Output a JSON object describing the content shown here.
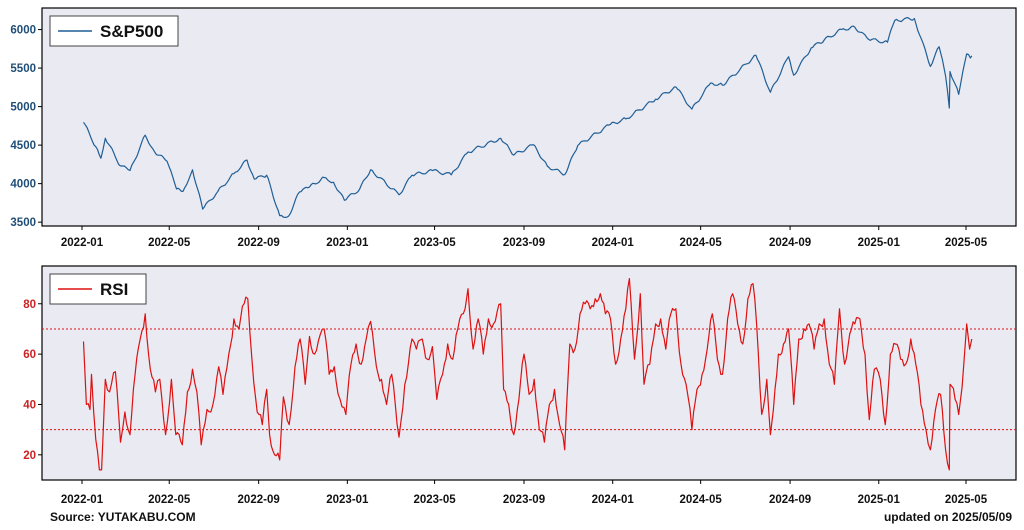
{
  "chart_data": [
    {
      "type": "line",
      "series": [
        {
          "name": "S&P500",
          "color": "#1f5f96",
          "points": [
            [
              "2022-01-03",
              4796
            ],
            [
              "2022-01-20",
              4480
            ],
            [
              "2022-01-27",
              4330
            ],
            [
              "2022-02-02",
              4590
            ],
            [
              "2022-02-23",
              4230
            ],
            [
              "2022-03-08",
              4170
            ],
            [
              "2022-03-29",
              4630
            ],
            [
              "2022-04-11",
              4410
            ],
            [
              "2022-04-28",
              4290
            ],
            [
              "2022-05-11",
              3930
            ],
            [
              "2022-05-20",
              3900
            ],
            [
              "2022-06-02",
              4180
            ],
            [
              "2022-06-16",
              3670
            ],
            [
              "2022-07-07",
              3900
            ],
            [
              "2022-07-29",
              4130
            ],
            [
              "2022-08-16",
              4305
            ],
            [
              "2022-08-26",
              4057
            ],
            [
              "2022-09-12",
              4110
            ],
            [
              "2022-09-30",
              3585
            ],
            [
              "2022-10-12",
              3577
            ],
            [
              "2022-10-27",
              3890
            ],
            [
              "2022-11-10",
              3956
            ],
            [
              "2022-11-30",
              4080
            ],
            [
              "2022-12-13",
              4019
            ],
            [
              "2022-12-28",
              3783
            ],
            [
              "2023-01-18",
              3930
            ],
            [
              "2023-02-02",
              4180
            ],
            [
              "2023-03-13",
              3855
            ],
            [
              "2023-03-31",
              4109
            ],
            [
              "2023-04-28",
              4169
            ],
            [
              "2023-05-24",
              4115
            ],
            [
              "2023-06-16",
              4410
            ],
            [
              "2023-07-31",
              4589
            ],
            [
              "2023-08-18",
              4370
            ],
            [
              "2023-09-14",
              4505
            ],
            [
              "2023-10-03",
              4229
            ],
            [
              "2023-10-27",
              4117
            ],
            [
              "2023-11-14",
              4495
            ],
            [
              "2023-12-29",
              4770
            ],
            [
              "2024-01-19",
              4840
            ],
            [
              "2024-02-29",
              5096
            ],
            [
              "2024-03-28",
              5254
            ],
            [
              "2024-04-19",
              4967
            ],
            [
              "2024-05-15",
              5308
            ],
            [
              "2024-05-31",
              5278
            ],
            [
              "2024-07-16",
              5667
            ],
            [
              "2024-08-05",
              5186
            ],
            [
              "2024-08-30",
              5648
            ],
            [
              "2024-09-06",
              5408
            ],
            [
              "2024-09-30",
              5762
            ],
            [
              "2024-10-18",
              5864
            ],
            [
              "2024-11-11",
              6001
            ],
            [
              "2024-11-29",
              6032
            ],
            [
              "2024-12-18",
              5872
            ],
            [
              "2025-01-13",
              5836
            ],
            [
              "2025-01-23",
              6119
            ],
            [
              "2025-02-19",
              6144
            ],
            [
              "2025-03-13",
              5521
            ],
            [
              "2025-03-25",
              5777
            ],
            [
              "2025-04-03",
              5396
            ],
            [
              "2025-04-08",
              4982
            ],
            [
              "2025-04-09",
              5456
            ],
            [
              "2025-04-21",
              5158
            ],
            [
              "2025-05-02",
              5686
            ],
            [
              "2025-05-07",
              5631
            ],
            [
              "2025-05-09",
              5660
            ]
          ]
        }
      ],
      "yticks": [
        3500,
        4000,
        4500,
        5000,
        5500,
        6000
      ],
      "ylim": [
        3450,
        6280
      ],
      "legend": "upper-left"
    },
    {
      "type": "line",
      "series": [
        {
          "name": "RSI",
          "color": "#dd1111",
          "points": [
            [
              "2022-01-03",
              65
            ],
            [
              "2022-01-07",
              40
            ],
            [
              "2022-01-12",
              38
            ],
            [
              "2022-01-14",
              52
            ],
            [
              "2022-01-20",
              26
            ],
            [
              "2022-01-25",
              14
            ],
            [
              "2022-01-28",
              14
            ],
            [
              "2022-02-02",
              50
            ],
            [
              "2022-02-08",
              45
            ],
            [
              "2022-02-16",
              53
            ],
            [
              "2022-02-23",
              25
            ],
            [
              "2022-03-01",
              37
            ],
            [
              "2022-03-08",
              28
            ],
            [
              "2022-03-15",
              52
            ],
            [
              "2022-03-22",
              66
            ],
            [
              "2022-03-29",
              76
            ],
            [
              "2022-04-05",
              54
            ],
            [
              "2022-04-12",
              45
            ],
            [
              "2022-04-18",
              50
            ],
            [
              "2022-04-26",
              28
            ],
            [
              "2022-05-04",
              50
            ],
            [
              "2022-05-10",
              28
            ],
            [
              "2022-05-19",
              24
            ],
            [
              "2022-05-26",
              45
            ],
            [
              "2022-06-02",
              54
            ],
            [
              "2022-06-08",
              45
            ],
            [
              "2022-06-14",
              24
            ],
            [
              "2022-06-22",
              38
            ],
            [
              "2022-06-30",
              40
            ],
            [
              "2022-07-08",
              55
            ],
            [
              "2022-07-14",
              44
            ],
            [
              "2022-07-22",
              60
            ],
            [
              "2022-07-29",
              74
            ],
            [
              "2022-08-05",
              70
            ],
            [
              "2022-08-12",
              80
            ],
            [
              "2022-08-17",
              82
            ],
            [
              "2022-08-23",
              57
            ],
            [
              "2022-08-30",
              37
            ],
            [
              "2022-09-06",
              32
            ],
            [
              "2022-09-12",
              46
            ],
            [
              "2022-09-16",
              28
            ],
            [
              "2022-09-23",
              20
            ],
            [
              "2022-09-30",
              18
            ],
            [
              "2022-10-05",
              43
            ],
            [
              "2022-10-13",
              32
            ],
            [
              "2022-10-21",
              55
            ],
            [
              "2022-10-28",
              66
            ],
            [
              "2022-11-04",
              48
            ],
            [
              "2022-11-10",
              67
            ],
            [
              "2022-11-17",
              60
            ],
            [
              "2022-11-30",
              70
            ],
            [
              "2022-12-07",
              52
            ],
            [
              "2022-12-14",
              55
            ],
            [
              "2022-12-22",
              42
            ],
            [
              "2022-12-30",
              36
            ],
            [
              "2023-01-06",
              56
            ],
            [
              "2023-01-13",
              64
            ],
            [
              "2023-01-20",
              56
            ],
            [
              "2023-01-27",
              66
            ],
            [
              "2023-02-02",
              73
            ],
            [
              "2023-02-10",
              55
            ],
            [
              "2023-02-17",
              50
            ],
            [
              "2023-02-24",
              40
            ],
            [
              "2023-03-03",
              52
            ],
            [
              "2023-03-13",
              27
            ],
            [
              "2023-03-21",
              48
            ],
            [
              "2023-03-31",
              66
            ],
            [
              "2023-04-06",
              62
            ],
            [
              "2023-04-14",
              66
            ],
            [
              "2023-04-21",
              58
            ],
            [
              "2023-04-28",
              63
            ],
            [
              "2023-05-04",
              42
            ],
            [
              "2023-05-12",
              52
            ],
            [
              "2023-05-19",
              64
            ],
            [
              "2023-05-26",
              58
            ],
            [
              "2023-06-02",
              70
            ],
            [
              "2023-06-12",
              78
            ],
            [
              "2023-06-16",
              86
            ],
            [
              "2023-06-23",
              62
            ],
            [
              "2023-06-30",
              74
            ],
            [
              "2023-07-07",
              60
            ],
            [
              "2023-07-14",
              74
            ],
            [
              "2023-07-21",
              72
            ],
            [
              "2023-07-31",
              80
            ],
            [
              "2023-08-04",
              46
            ],
            [
              "2023-08-11",
              40
            ],
            [
              "2023-08-18",
              28
            ],
            [
              "2023-08-25",
              42
            ],
            [
              "2023-09-01",
              60
            ],
            [
              "2023-09-08",
              44
            ],
            [
              "2023-09-15",
              50
            ],
            [
              "2023-09-22",
              30
            ],
            [
              "2023-09-29",
              25
            ],
            [
              "2023-10-06",
              40
            ],
            [
              "2023-10-13",
              46
            ],
            [
              "2023-10-20",
              32
            ],
            [
              "2023-10-27",
              22
            ],
            [
              "2023-11-03",
              64
            ],
            [
              "2023-11-10",
              62
            ],
            [
              "2023-11-17",
              76
            ],
            [
              "2023-11-24",
              80
            ],
            [
              "2023-12-01",
              78
            ],
            [
              "2023-12-08",
              82
            ],
            [
              "2023-12-15",
              84
            ],
            [
              "2023-12-22",
              76
            ],
            [
              "2023-12-29",
              74
            ],
            [
              "2024-01-05",
              56
            ],
            [
              "2024-01-12",
              66
            ],
            [
              "2024-01-19",
              78
            ],
            [
              "2024-01-24",
              90
            ],
            [
              "2024-01-31",
              58
            ],
            [
              "2024-02-08",
              84
            ],
            [
              "2024-02-13",
              48
            ],
            [
              "2024-02-21",
              56
            ],
            [
              "2024-02-29",
              72
            ],
            [
              "2024-03-07",
              74
            ],
            [
              "2024-03-14",
              62
            ],
            [
              "2024-03-21",
              76
            ],
            [
              "2024-03-28",
              78
            ],
            [
              "2024-04-04",
              56
            ],
            [
              "2024-04-11",
              48
            ],
            [
              "2024-04-19",
              30
            ],
            [
              "2024-04-26",
              46
            ],
            [
              "2024-05-03",
              52
            ],
            [
              "2024-05-10",
              62
            ],
            [
              "2024-05-17",
              76
            ],
            [
              "2024-05-24",
              58
            ],
            [
              "2024-05-31",
              52
            ],
            [
              "2024-06-07",
              74
            ],
            [
              "2024-06-14",
              84
            ],
            [
              "2024-06-21",
              72
            ],
            [
              "2024-06-28",
              64
            ],
            [
              "2024-07-05",
              82
            ],
            [
              "2024-07-12",
              88
            ],
            [
              "2024-07-17",
              72
            ],
            [
              "2024-07-24",
              36
            ],
            [
              "2024-07-31",
              50
            ],
            [
              "2024-08-05",
              28
            ],
            [
              "2024-08-09",
              38
            ],
            [
              "2024-08-16",
              60
            ],
            [
              "2024-08-23",
              64
            ],
            [
              "2024-08-30",
              70
            ],
            [
              "2024-09-06",
              40
            ],
            [
              "2024-09-13",
              66
            ],
            [
              "2024-09-20",
              70
            ],
            [
              "2024-09-27",
              72
            ],
            [
              "2024-10-04",
              62
            ],
            [
              "2024-10-11",
              72
            ],
            [
              "2024-10-18",
              74
            ],
            [
              "2024-10-25",
              56
            ],
            [
              "2024-11-01",
              48
            ],
            [
              "2024-11-08",
              78
            ],
            [
              "2024-11-15",
              56
            ],
            [
              "2024-11-22",
              68
            ],
            [
              "2024-11-29",
              72
            ],
            [
              "2024-12-06",
              74
            ],
            [
              "2024-12-13",
              60
            ],
            [
              "2024-12-19",
              34
            ],
            [
              "2024-12-26",
              54
            ],
            [
              "2025-01-03",
              50
            ],
            [
              "2025-01-10",
              32
            ],
            [
              "2025-01-17",
              60
            ],
            [
              "2025-01-24",
              64
            ],
            [
              "2025-01-31",
              58
            ],
            [
              "2025-02-07",
              56
            ],
            [
              "2025-02-14",
              66
            ],
            [
              "2025-02-21",
              56
            ],
            [
              "2025-02-28",
              40
            ],
            [
              "2025-03-07",
              30
            ],
            [
              "2025-03-13",
              22
            ],
            [
              "2025-03-20",
              38
            ],
            [
              "2025-03-27",
              44
            ],
            [
              "2025-04-03",
              22
            ],
            [
              "2025-04-08",
              14
            ],
            [
              "2025-04-09",
              48
            ],
            [
              "2025-04-16",
              42
            ],
            [
              "2025-04-21",
              36
            ],
            [
              "2025-04-28",
              56
            ],
            [
              "2025-05-02",
              72
            ],
            [
              "2025-05-06",
              62
            ],
            [
              "2025-05-09",
              66
            ]
          ]
        }
      ],
      "yticks": [
        20,
        40,
        60,
        80
      ],
      "ylim": [
        10,
        95
      ],
      "hlines": [
        {
          "y": 70,
          "color": "#dd1111"
        },
        {
          "y": 30,
          "color": "#dd1111"
        }
      ],
      "legend": "upper-left"
    }
  ],
  "x_ticks": [
    "2022-01",
    "2022-05",
    "2022-09",
    "2023-01",
    "2023-05",
    "2023-09",
    "2024-01",
    "2024-05",
    "2024-09",
    "2025-01",
    "2025-05"
  ],
  "footer": {
    "source": "Source: YUTAKABU.COM",
    "updated": "updated on 2025/05/09"
  }
}
